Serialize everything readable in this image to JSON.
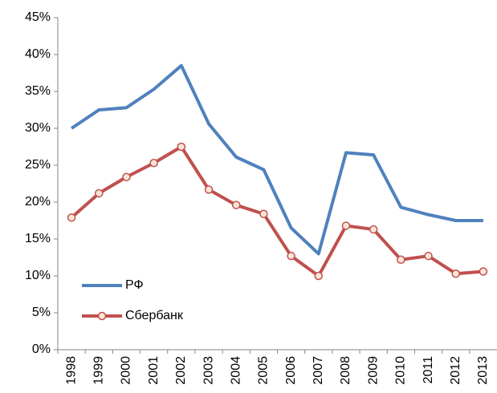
{
  "chart_data": {
    "type": "line",
    "categories": [
      "1998",
      "1999",
      "2000",
      "2001",
      "2002",
      "2003",
      "2004",
      "2005",
      "2006",
      "2007",
      "2008",
      "2009",
      "2010",
      "2011",
      "2012",
      "2013"
    ],
    "series": [
      {
        "name": "РФ",
        "color": "#4f81bd",
        "marker": false,
        "values": [
          30,
          32.5,
          32.8,
          35.3,
          38.5,
          30.6,
          26.1,
          24.4,
          16.5,
          13,
          26.7,
          26.4,
          19.3,
          18.3,
          17.5,
          17.5
        ]
      },
      {
        "name": "Сбербанк",
        "color": "#c0504d",
        "marker": true,
        "values": [
          17.9,
          21.2,
          23.4,
          25.3,
          27.5,
          21.7,
          19.6,
          18.4,
          12.7,
          10,
          16.8,
          16.3,
          12.2,
          12.7,
          10.3,
          10.6
        ]
      }
    ],
    "ylim": [
      0,
      45
    ],
    "yticks": [
      {
        "value": 0,
        "label": "0%"
      },
      {
        "value": 5,
        "label": "5%"
      },
      {
        "value": 10,
        "label": "10%"
      },
      {
        "value": 15,
        "label": "15%"
      },
      {
        "value": 20,
        "label": "20%"
      },
      {
        "value": 25,
        "label": "25%"
      },
      {
        "value": 30,
        "label": "30%"
      },
      {
        "value": 35,
        "label": "35%"
      },
      {
        "value": 40,
        "label": "40%"
      },
      {
        "value": 45,
        "label": "45%"
      }
    ],
    "grid": false,
    "legend": "lower-left"
  }
}
